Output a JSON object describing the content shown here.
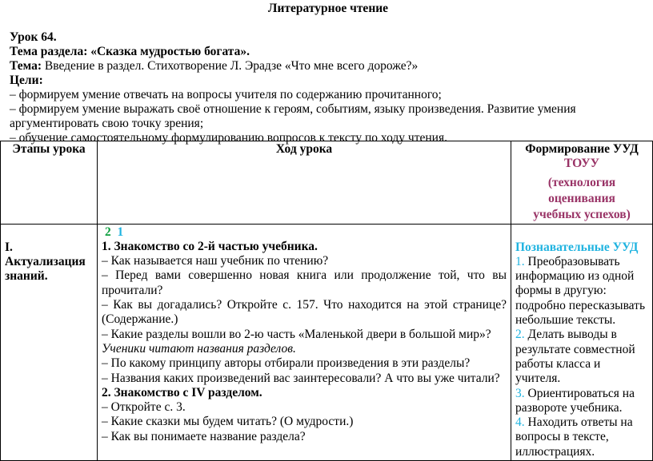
{
  "title": "Литературное чтение",
  "lesson": "Урок 64.",
  "section_label": "Тема раздела:",
  "section_value": "«Сказка мудростью богата».",
  "topic_label": "Тема:",
  "topic_value": "Введение в раздел. Стихотворение Л. Эрадзе «Что мне всего дороже?»",
  "goals_label": "Цели:",
  "goals": [
    "– формируем умение отвечать на вопросы учителя по содержанию прочитанного;",
    "– формируем умение выражать своё отношение к героям, событиям, языку произведения. Развитие умения",
    "аргументировать свою точку зрения;",
    "– обучение самостоятельному формулированию вопросов к тексту по ходу чтения."
  ],
  "table": {
    "headers": {
      "stages": "Этапы урока",
      "course": "Ход урока",
      "formation": "Формирование УУД",
      "touu": "ТОУУ",
      "tech": "(технология оценивания",
      "tech2": "учебных успехов)"
    },
    "row": {
      "stage": "I. Актуализация знаний.",
      "num_green": "2",
      "num_cyan": "1",
      "lines": [
        {
          "t": "1. Знакомство со 2-й частью учебника.",
          "s": "b"
        },
        {
          "t": "– Как называется наш учебник по чтению?",
          "s": ""
        },
        {
          "t": "– Перед вами совершенно новая книга или продолжение той, что вы прочитали?",
          "s": "j"
        },
        {
          "t": "– Как вы догадались? Откройте с. 157. Что находится на этой странице? (Содержание.)",
          "s": "j"
        },
        {
          "t": "– Какие разделы вошли во 2-ю часть «Маленькой двери в большой мир»?",
          "s": "j"
        },
        {
          "t": "Ученики читают названия разделов.",
          "s": "i"
        },
        {
          "t": "– По какому принципу авторы отбирали произведения в эти разделы?",
          "s": ""
        },
        {
          "t": "– Названия каких произведений вас заинтересовали? А что вы уже читали?",
          "s": ""
        },
        {
          "t": "2. Знакомство с IV разделом.",
          "s": "b"
        },
        {
          "t": "– Откройте с. 3.",
          "s": ""
        },
        {
          "t": "– Какие сказки мы будем читать? (О мудрости.)",
          "s": ""
        },
        {
          "t": "– Как вы понимаете название раздела?",
          "s": ""
        }
      ],
      "uud_title": "Познавательные УУД",
      "uud": [
        {
          "n": "1.",
          "t": "Преобразовывать информацию из одной формы в другую: подробно пересказывать небольшие тексты."
        },
        {
          "n": "2.",
          "t": "Делать выводы в результате совместной работы класса и учителя."
        },
        {
          "n": "3.",
          "t": "Ориентироваться на развороте учебника."
        },
        {
          "n": "4.",
          "t": "Находить ответы на вопросы в тексте, иллюстрациях."
        }
      ]
    }
  }
}
